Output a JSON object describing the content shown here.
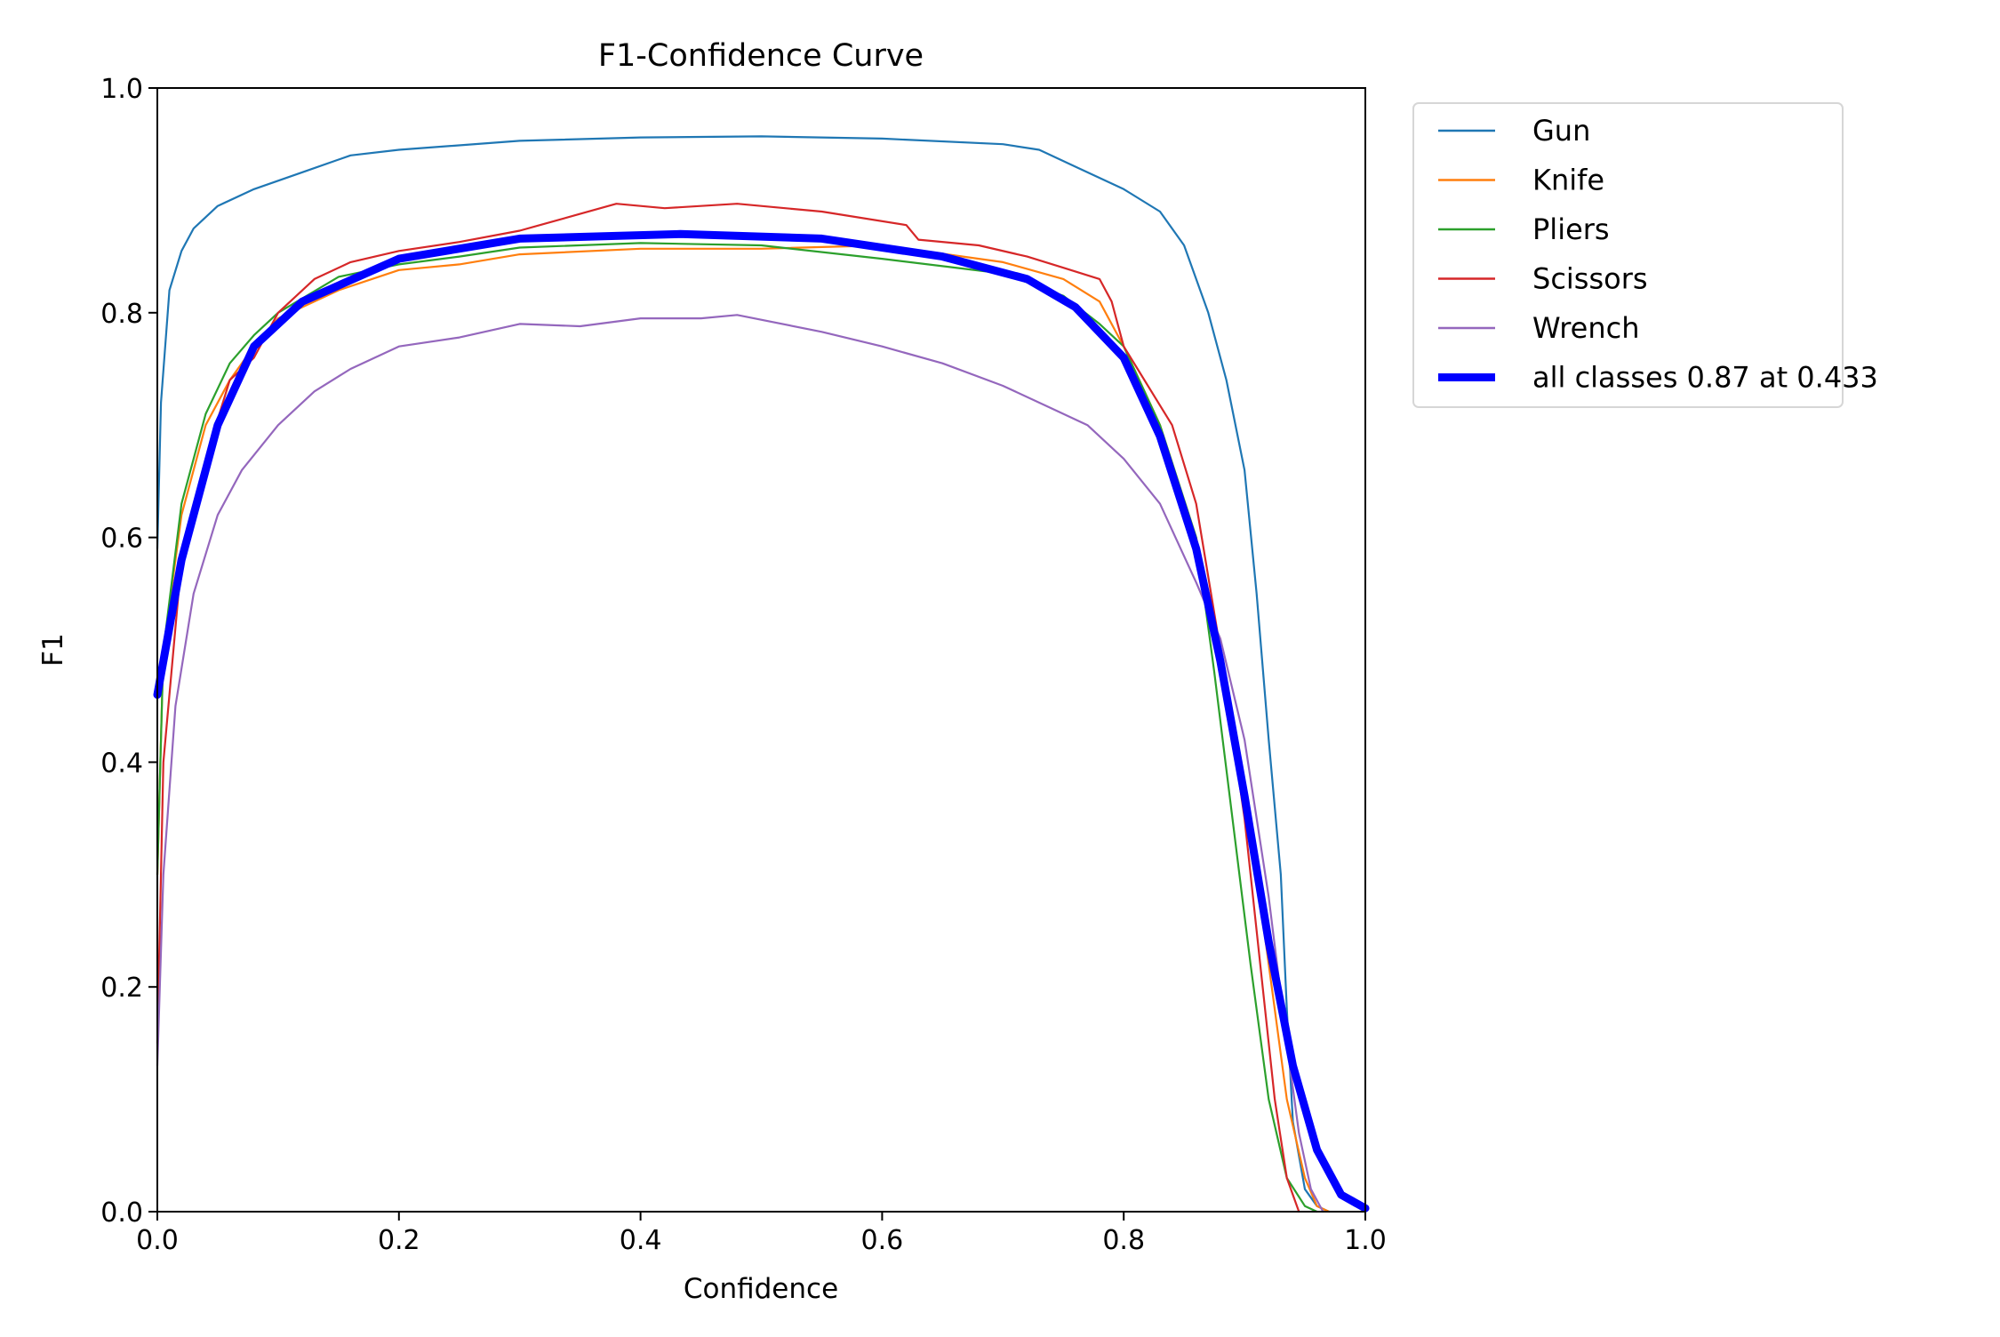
{
  "chart_data": {
    "type": "line",
    "title": "F1-Confidence Curve",
    "xlabel": "Confidence",
    "ylabel": "F1",
    "xlim": [
      0,
      1
    ],
    "ylim": [
      0,
      1
    ],
    "xticks": [
      "0.0",
      "0.2",
      "0.4",
      "0.6",
      "0.8",
      "1.0"
    ],
    "yticks": [
      "0.0",
      "0.2",
      "0.4",
      "0.6",
      "0.8",
      "1.0"
    ],
    "grid": false,
    "legend_position": "outside-top-right",
    "series": [
      {
        "name": "Gun",
        "color": "#1f77b4",
        "width": "thin",
        "points": [
          [
            0,
            0.59
          ],
          [
            0.003,
            0.72
          ],
          [
            0.01,
            0.82
          ],
          [
            0.02,
            0.855
          ],
          [
            0.03,
            0.875
          ],
          [
            0.05,
            0.895
          ],
          [
            0.08,
            0.91
          ],
          [
            0.12,
            0.925
          ],
          [
            0.16,
            0.94
          ],
          [
            0.2,
            0.945
          ],
          [
            0.3,
            0.953
          ],
          [
            0.4,
            0.956
          ],
          [
            0.5,
            0.957
          ],
          [
            0.6,
            0.955
          ],
          [
            0.7,
            0.95
          ],
          [
            0.73,
            0.945
          ],
          [
            0.76,
            0.93
          ],
          [
            0.8,
            0.91
          ],
          [
            0.83,
            0.89
          ],
          [
            0.85,
            0.86
          ],
          [
            0.87,
            0.8
          ],
          [
            0.885,
            0.74
          ],
          [
            0.9,
            0.66
          ],
          [
            0.91,
            0.55
          ],
          [
            0.92,
            0.42
          ],
          [
            0.93,
            0.3
          ],
          [
            0.935,
            0.18
          ],
          [
            0.94,
            0.08
          ],
          [
            0.95,
            0.02
          ],
          [
            0.96,
            0.005
          ],
          [
            0.97,
            0
          ]
        ]
      },
      {
        "name": "Knife",
        "color": "#ff7f0e",
        "width": "thin",
        "points": [
          [
            0,
            0.3
          ],
          [
            0.005,
            0.5
          ],
          [
            0.02,
            0.62
          ],
          [
            0.04,
            0.7
          ],
          [
            0.06,
            0.74
          ],
          [
            0.08,
            0.77
          ],
          [
            0.1,
            0.795
          ],
          [
            0.15,
            0.82
          ],
          [
            0.2,
            0.838
          ],
          [
            0.25,
            0.843
          ],
          [
            0.3,
            0.852
          ],
          [
            0.4,
            0.857
          ],
          [
            0.5,
            0.857
          ],
          [
            0.6,
            0.86
          ],
          [
            0.7,
            0.845
          ],
          [
            0.75,
            0.83
          ],
          [
            0.78,
            0.81
          ],
          [
            0.8,
            0.77
          ],
          [
            0.83,
            0.7
          ],
          [
            0.86,
            0.6
          ],
          [
            0.88,
            0.5
          ],
          [
            0.9,
            0.38
          ],
          [
            0.92,
            0.22
          ],
          [
            0.935,
            0.1
          ],
          [
            0.95,
            0.03
          ],
          [
            0.96,
            0.005
          ],
          [
            0.97,
            0
          ]
        ]
      },
      {
        "name": "Pliers",
        "color": "#2ca02c",
        "width": "thin",
        "points": [
          [
            0,
            0.3
          ],
          [
            0.005,
            0.5
          ],
          [
            0.02,
            0.63
          ],
          [
            0.04,
            0.71
          ],
          [
            0.06,
            0.755
          ],
          [
            0.08,
            0.78
          ],
          [
            0.1,
            0.8
          ],
          [
            0.15,
            0.832
          ],
          [
            0.2,
            0.843
          ],
          [
            0.25,
            0.85
          ],
          [
            0.3,
            0.858
          ],
          [
            0.4,
            0.862
          ],
          [
            0.5,
            0.86
          ],
          [
            0.6,
            0.848
          ],
          [
            0.7,
            0.835
          ],
          [
            0.75,
            0.815
          ],
          [
            0.78,
            0.79
          ],
          [
            0.8,
            0.77
          ],
          [
            0.83,
            0.7
          ],
          [
            0.86,
            0.6
          ],
          [
            0.875,
            0.48
          ],
          [
            0.89,
            0.35
          ],
          [
            0.905,
            0.22
          ],
          [
            0.92,
            0.1
          ],
          [
            0.935,
            0.03
          ],
          [
            0.95,
            0.005
          ],
          [
            0.96,
            0
          ]
        ]
      },
      {
        "name": "Scissors",
        "color": "#d62728",
        "width": "thin",
        "points": [
          [
            0,
            0.15
          ],
          [
            0.005,
            0.4
          ],
          [
            0.02,
            0.58
          ],
          [
            0.04,
            0.67
          ],
          [
            0.06,
            0.74
          ],
          [
            0.08,
            0.76
          ],
          [
            0.1,
            0.8
          ],
          [
            0.13,
            0.83
          ],
          [
            0.16,
            0.845
          ],
          [
            0.2,
            0.855
          ],
          [
            0.25,
            0.863
          ],
          [
            0.3,
            0.873
          ],
          [
            0.35,
            0.888
          ],
          [
            0.38,
            0.897
          ],
          [
            0.42,
            0.893
          ],
          [
            0.48,
            0.897
          ],
          [
            0.55,
            0.89
          ],
          [
            0.62,
            0.878
          ],
          [
            0.63,
            0.865
          ],
          [
            0.68,
            0.86
          ],
          [
            0.72,
            0.85
          ],
          [
            0.75,
            0.84
          ],
          [
            0.78,
            0.83
          ],
          [
            0.79,
            0.81
          ],
          [
            0.8,
            0.77
          ],
          [
            0.84,
            0.7
          ],
          [
            0.86,
            0.63
          ],
          [
            0.88,
            0.5
          ],
          [
            0.9,
            0.35
          ],
          [
            0.915,
            0.2
          ],
          [
            0.925,
            0.1
          ],
          [
            0.935,
            0.03
          ],
          [
            0.945,
            0
          ]
        ]
      },
      {
        "name": "Wrench",
        "color": "#9467bd",
        "width": "thin",
        "points": [
          [
            0,
            0.13
          ],
          [
            0.005,
            0.3
          ],
          [
            0.015,
            0.45
          ],
          [
            0.03,
            0.55
          ],
          [
            0.05,
            0.62
          ],
          [
            0.07,
            0.66
          ],
          [
            0.1,
            0.7
          ],
          [
            0.13,
            0.73
          ],
          [
            0.16,
            0.75
          ],
          [
            0.2,
            0.77
          ],
          [
            0.25,
            0.778
          ],
          [
            0.3,
            0.79
          ],
          [
            0.35,
            0.788
          ],
          [
            0.4,
            0.795
          ],
          [
            0.45,
            0.795
          ],
          [
            0.48,
            0.798
          ],
          [
            0.55,
            0.783
          ],
          [
            0.6,
            0.77
          ],
          [
            0.65,
            0.755
          ],
          [
            0.7,
            0.735
          ],
          [
            0.74,
            0.715
          ],
          [
            0.77,
            0.7
          ],
          [
            0.8,
            0.67
          ],
          [
            0.83,
            0.63
          ],
          [
            0.86,
            0.56
          ],
          [
            0.88,
            0.51
          ],
          [
            0.9,
            0.42
          ],
          [
            0.92,
            0.28
          ],
          [
            0.935,
            0.15
          ],
          [
            0.945,
            0.07
          ],
          [
            0.955,
            0.02
          ],
          [
            0.965,
            0
          ]
        ]
      },
      {
        "name": "all classes 0.87 at 0.433",
        "color": "#0000ff",
        "width": "thick",
        "points": [
          [
            0,
            0.46
          ],
          [
            0.02,
            0.58
          ],
          [
            0.05,
            0.7
          ],
          [
            0.08,
            0.77
          ],
          [
            0.12,
            0.81
          ],
          [
            0.2,
            0.848
          ],
          [
            0.3,
            0.866
          ],
          [
            0.433,
            0.87
          ],
          [
            0.55,
            0.866
          ],
          [
            0.65,
            0.85
          ],
          [
            0.72,
            0.83
          ],
          [
            0.76,
            0.805
          ],
          [
            0.8,
            0.76
          ],
          [
            0.83,
            0.69
          ],
          [
            0.86,
            0.59
          ],
          [
            0.88,
            0.49
          ],
          [
            0.9,
            0.37
          ],
          [
            0.92,
            0.24
          ],
          [
            0.94,
            0.13
          ],
          [
            0.96,
            0.055
          ],
          [
            0.98,
            0.015
          ],
          [
            1,
            0.003
          ]
        ]
      }
    ]
  }
}
